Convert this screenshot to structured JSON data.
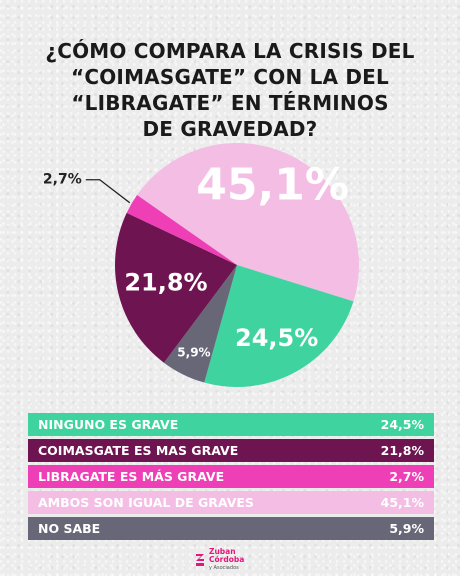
{
  "title_lines": [
    "¿CÓMO COMPARA LA CRISIS DEL",
    "“COIMASGATE” CON LA DEL",
    "“LIBRAGATE” EN TÉRMINOS",
    "DE GRAVEDAD?"
  ],
  "chart_data": {
    "type": "pie",
    "slices": [
      {
        "label": "AMBOS SON IGUAL DE GRAVES",
        "value": 45.1,
        "display": "45,1%",
        "color": "#f3bde4",
        "text_color": "#ffffff"
      },
      {
        "label": "NINGUNO ES GRAVE",
        "value": 24.5,
        "display": "24,5%",
        "color": "#3fd3a0",
        "text_color": "#ffffff"
      },
      {
        "label": "NO SABE",
        "value": 5.9,
        "display": "5,9%",
        "color": "#676778",
        "text_color": "#ffffff"
      },
      {
        "label": "COIMASGATE ES MAS GRAVE",
        "value": 21.8,
        "display": "21,8%",
        "color": "#6e1450",
        "text_color": "#ffffff"
      },
      {
        "label": "LIBRAGATE ES MÁS GRAVE",
        "value": 2.7,
        "display": "2,7%",
        "color": "#ee3fb6",
        "text_color": "#222222"
      }
    ]
  },
  "legend": [
    {
      "label": "NINGUNO ES GRAVE",
      "value": "24,5%",
      "color": "#3fd3a0"
    },
    {
      "label": "COIMASGATE ES MAS GRAVE",
      "value": "21,8%",
      "color": "#6e1450"
    },
    {
      "label": "LIBRAGATE ES MÁS GRAVE",
      "value": "2,7%",
      "color": "#ee3fb6"
    },
    {
      "label": "AMBOS SON IGUAL DE GRAVES",
      "value": "45,1%",
      "color": "#f3bde4"
    },
    {
      "label": "NO SABE",
      "value": "5,9%",
      "color": "#676778"
    }
  ],
  "logo": {
    "line1": "Zuban",
    "line2": "Córdoba",
    "line3": "y Asociados",
    "color": "#e4167a"
  }
}
